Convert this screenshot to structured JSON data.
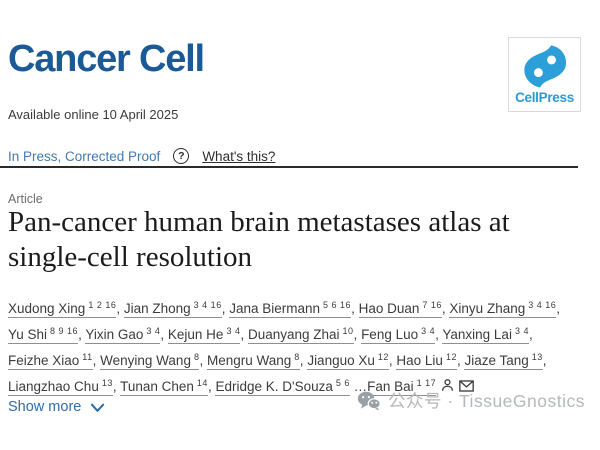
{
  "journal": {
    "name": "Cancer Cell"
  },
  "publisher": {
    "logo_text": "CellPress",
    "logo_icon": "cellpress-swirl-icon"
  },
  "availability": {
    "text": "Available online 10 April 2025"
  },
  "status": {
    "label": "In Press, Corrected Proof",
    "help_icon": "?",
    "help_link": "What's this?"
  },
  "article": {
    "type_label": "Article",
    "title": "Pan-cancer human brain metastases atlas at\nsingle-cell resolution",
    "show_more_label": "Show more",
    "authors": [
      {
        "name": "Xudong Xing",
        "superscripts": "1 2 16",
        "separator": ", "
      },
      {
        "name": "Jian Zhong",
        "superscripts": "3 4 16",
        "separator": ", "
      },
      {
        "name": "Jana Biermann",
        "superscripts": "5 6 16",
        "separator": ", "
      },
      {
        "name": "Hao Duan",
        "superscripts": "7 16",
        "separator": ", "
      },
      {
        "name": "Xinyu Zhang",
        "superscripts": "3 4 16",
        "separator": ", "
      },
      {
        "name": "Yu Shi",
        "superscripts": "8 9 16",
        "separator": ", "
      },
      {
        "name": "Yixin Gao",
        "superscripts": "3 4",
        "separator": ", "
      },
      {
        "name": "Kejun He",
        "superscripts": "3 4",
        "separator": ", "
      },
      {
        "name": "Duanyang Zhai",
        "superscripts": "10",
        "separator": ", "
      },
      {
        "name": "Feng Luo",
        "superscripts": "3 4",
        "separator": ", "
      },
      {
        "name": "Yanxing Lai",
        "superscripts": "3 4",
        "separator": ", "
      },
      {
        "name": "Feizhe Xiao",
        "superscripts": "11",
        "separator": ", "
      },
      {
        "name": "Wenying Wang",
        "superscripts": "8",
        "separator": ", "
      },
      {
        "name": "Mengru Wang",
        "superscripts": "8",
        "separator": ", "
      },
      {
        "name": "Jianguo Xu",
        "superscripts": "12",
        "separator": ", "
      },
      {
        "name": "Hao Liu",
        "superscripts": "12",
        "separator": ", "
      },
      {
        "name": "Jiaze Tang",
        "superscripts": "13",
        "separator": ", "
      },
      {
        "name": "Liangzhao Chu",
        "superscripts": "13",
        "separator": ", "
      },
      {
        "name": "Tunan Chen",
        "superscripts": "14",
        "separator": ", "
      },
      {
        "name": "Edridge K. D'Souza",
        "superscripts": "5 6",
        "separator": " …"
      },
      {
        "name": "Fan Bai",
        "superscripts": "1 17",
        "separator": "",
        "icons": [
          "author-profile-icon",
          "email-author-icon"
        ]
      }
    ]
  },
  "watermark": {
    "text": "公众号 · TissueGnostics",
    "icon": "wechat-icon"
  },
  "colors": {
    "journal_blue": "#1c5a96",
    "cellpress_blue": "#2b9ad3",
    "inpress_blue": "#4678ae",
    "show_more_blue": "#2e6ca9",
    "title_dark": "#1b1b1b",
    "author_text": "#3c3c3c",
    "watermark_gray": "#b4b7bb"
  }
}
